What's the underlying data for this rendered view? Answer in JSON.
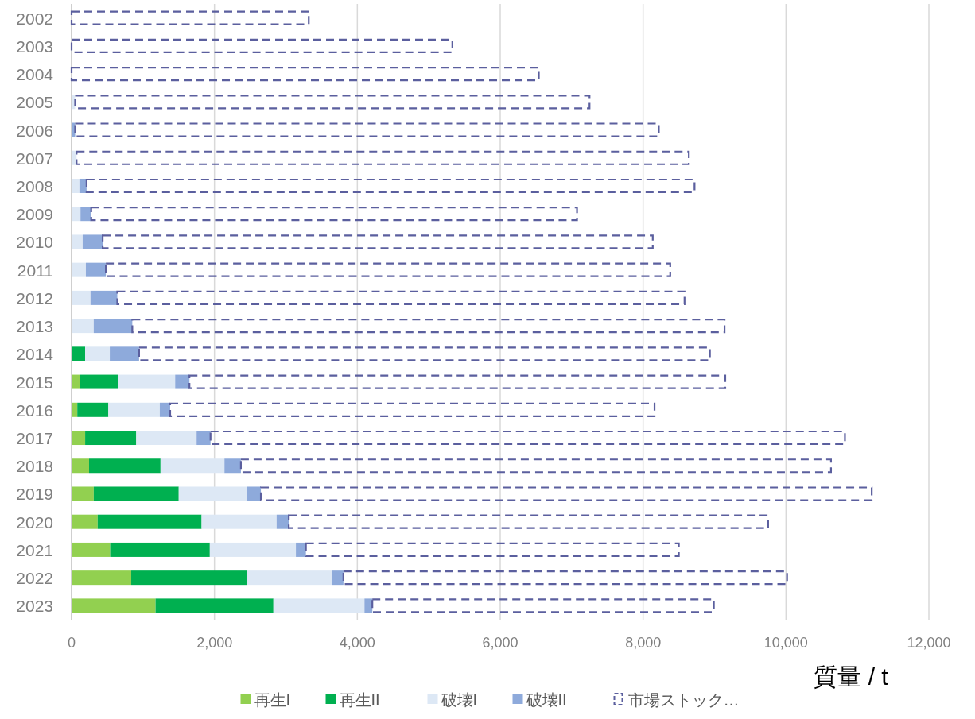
{
  "chart_data": {
    "type": "bar",
    "orientation": "horizontal",
    "stacked": true,
    "xlabel": "質量 / t",
    "legend": "bottom",
    "grid": "x",
    "categories": [
      "2002",
      "2003",
      "2004",
      "2005",
      "2006",
      "2007",
      "2008",
      "2009",
      "2010",
      "2011",
      "2012",
      "2013",
      "2014",
      "2015",
      "2016",
      "2017",
      "2018",
      "2019",
      "2020",
      "2021",
      "2022",
      "2023"
    ],
    "xlim": [
      0,
      12000
    ],
    "xticks": [
      0,
      {
        "value": 2000,
        "label": "2,000"
      },
      {
        "value": 4000,
        "label": "4,000"
      },
      {
        "value": 6000,
        "label": "6,000"
      },
      {
        "value": 8000,
        "label": "8,000"
      },
      {
        "value": 10000,
        "label": "10,000"
      },
      {
        "value": 12000,
        "label": "12,000"
      }
    ],
    "series": [
      {
        "name": "再生I",
        "color": "#92d050",
        "values": [
          0,
          0,
          0,
          0,
          0,
          0,
          0,
          0,
          0,
          0,
          0,
          0,
          0,
          120,
          80,
          190,
          245,
          310,
          365,
          540,
          835,
          1175
        ]
      },
      {
        "name": "再生II",
        "color": "#00b050",
        "values": [
          0,
          0,
          0,
          0,
          0,
          0,
          0,
          0,
          0,
          0,
          0,
          0,
          190,
          530,
          435,
          715,
          1000,
          1190,
          1455,
          1395,
          1620,
          1650
        ]
      },
      {
        "name": "破壊I",
        "color": "#dde8f5",
        "values": [
          0,
          0,
          null,
          50,
          null,
          70,
          110,
          125,
          155,
          200,
          265,
          310,
          345,
          800,
          720,
          845,
          895,
          955,
          1050,
          1205,
          1185,
          1275
        ]
      },
      {
        "name": "破壊II",
        "color": "#8eaadb",
        "values": [
          0,
          0,
          0,
          0,
          50,
          0,
          100,
          150,
          280,
          280,
          375,
          540,
          410,
          200,
          145,
          195,
          230,
          195,
          170,
          140,
          165,
          110
        ]
      },
      {
        "name": "市場ストック…",
        "color": "#5b5f9e",
        "line_style": "dashed",
        "values": [
          3320,
          5330,
          6540,
          7200,
          8170,
          8570,
          8510,
          6800,
          7700,
          7900,
          7940,
          8290,
          7990,
          7500,
          6780,
          8880,
          8260,
          8550,
          6710,
          5220,
          6210,
          4780
        ]
      }
    ]
  }
}
